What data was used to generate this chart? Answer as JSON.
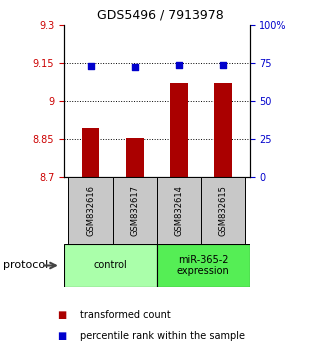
{
  "title": "GDS5496 / 7913978",
  "samples": [
    "GSM832616",
    "GSM832617",
    "GSM832614",
    "GSM832615"
  ],
  "bar_values": [
    8.895,
    8.852,
    9.07,
    9.07
  ],
  "dot_values": [
    9.138,
    9.133,
    9.143,
    9.143
  ],
  "bar_color": "#aa0000",
  "dot_color": "#0000cc",
  "ylim_left": [
    8.7,
    9.3
  ],
  "ylim_right": [
    0,
    100
  ],
  "yticks_left": [
    8.7,
    8.85,
    9.0,
    9.15,
    9.3
  ],
  "ytick_labels_left": [
    "8.7",
    "8.85",
    "9",
    "9.15",
    "9.3"
  ],
  "yticks_right": [
    0,
    25,
    50,
    75,
    100
  ],
  "ytick_labels_right": [
    "0",
    "25",
    "50",
    "75",
    "100%"
  ],
  "grid_values": [
    8.85,
    9.0,
    9.15
  ],
  "groups": [
    {
      "label": "control",
      "indices": [
        0,
        1
      ],
      "color": "#aaffaa"
    },
    {
      "label": "miR-365-2\nexpression",
      "indices": [
        2,
        3
      ],
      "color": "#55ee55"
    }
  ],
  "protocol_label": "protocol",
  "legend_bar": "transformed count",
  "legend_dot": "percentile rank within the sample",
  "bar_width": 0.4,
  "background_color": "#ffffff",
  "left_tick_color": "#cc0000",
  "right_tick_color": "#0000cc",
  "sample_box_color": "#c8c8c8",
  "title_fontsize": 9,
  "tick_fontsize": 7,
  "legend_fontsize": 7
}
